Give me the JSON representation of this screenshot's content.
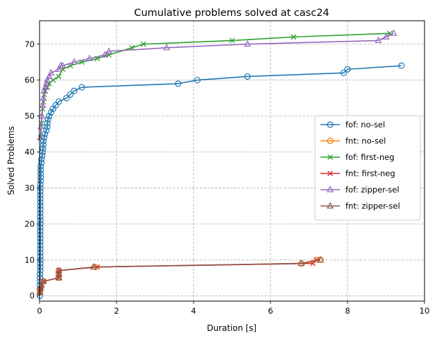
{
  "chart_data": {
    "type": "line",
    "title": "Cumulative problems solved at casc24",
    "xlabel": "Duration [s]",
    "ylabel": "Solved Problems",
    "xlim": [
      0,
      10
    ],
    "ylim": [
      -1.5,
      76.5
    ],
    "xticks": [
      0,
      2,
      4,
      6,
      8,
      10
    ],
    "yticks": [
      0,
      10,
      20,
      30,
      40,
      50,
      60,
      70
    ],
    "grid": true,
    "legend_position": "center-right",
    "series": [
      {
        "name": "fof: no-sel",
        "color": "#1f77b4",
        "marker": "circle",
        "x": [
          0.01,
          0.01,
          0.01,
          0.01,
          0.01,
          0.01,
          0.01,
          0.02,
          0.02,
          0.02,
          0.02,
          0.02,
          0.02,
          0.02,
          0.02,
          0.02,
          0.02,
          0.02,
          0.02,
          0.02,
          0.02,
          0.02,
          0.02,
          0.02,
          0.02,
          0.02,
          0.02,
          0.02,
          0.02,
          0.02,
          0.02,
          0.02,
          0.03,
          0.03,
          0.03,
          0.03,
          0.03,
          0.05,
          0.05,
          0.07,
          0.08,
          0.09,
          0.1,
          0.1,
          0.12,
          0.14,
          0.18,
          0.2,
          0.2,
          0.22,
          0.25,
          0.3,
          0.35,
          0.42,
          0.5,
          0.7,
          0.8,
          0.9,
          1.1,
          3.6,
          4.1,
          5.4,
          7.9,
          8.0,
          9.4
        ],
        "y": [
          0,
          1,
          2,
          3,
          4,
          5,
          6,
          7,
          8,
          9,
          10,
          11,
          12,
          13,
          14,
          15,
          16,
          17,
          18,
          19,
          20,
          21,
          22,
          23,
          24,
          25,
          26,
          27,
          28,
          29,
          30,
          31,
          32,
          33,
          34,
          35,
          36,
          37,
          38,
          39,
          40,
          41,
          42,
          43,
          44,
          45,
          46,
          47,
          48,
          49,
          50,
          51,
          52,
          53,
          54,
          55,
          56,
          57,
          58,
          59,
          60,
          61,
          62,
          63,
          64
        ]
      },
      {
        "name": "fnt: no-sel",
        "color": "#ff7f0e",
        "marker": "circle",
        "x": [
          0.01,
          0.03,
          0.1,
          0.5,
          0.5,
          0.5,
          1.45,
          6.8,
          7.2,
          7.3
        ],
        "y": [
          1,
          2,
          4,
          5,
          6,
          7,
          8,
          9,
          10,
          10
        ]
      },
      {
        "name": "fof: first-neg",
        "color": "#2ca02c",
        "marker": "x",
        "x": [
          0.03,
          0.05,
          0.08,
          0.1,
          0.12,
          0.15,
          0.2,
          0.25,
          0.35,
          0.5,
          0.6,
          0.8,
          1.1,
          1.5,
          1.8,
          2.4,
          2.7,
          5.0,
          6.6,
          9.1
        ],
        "y": [
          44,
          48,
          52,
          54,
          56,
          57,
          58,
          59,
          60,
          61,
          63,
          64,
          65,
          66,
          67,
          69,
          70,
          71,
          72,
          73
        ]
      },
      {
        "name": "fnt: first-neg",
        "color": "#d62728",
        "marker": "x",
        "x": [
          0.01,
          0.03,
          0.1,
          0.5,
          0.5,
          0.5,
          1.5,
          7.1,
          7.2
        ],
        "y": [
          1,
          2,
          4,
          5,
          6,
          7,
          8,
          9,
          10
        ]
      },
      {
        "name": "fof: zipper-sel",
        "color": "#9467bd",
        "marker": "triangle",
        "x": [
          0.02,
          0.04,
          0.06,
          0.08,
          0.1,
          0.12,
          0.15,
          0.18,
          0.2,
          0.25,
          0.3,
          0.5,
          0.55,
          0.6,
          0.9,
          1.3,
          1.7,
          1.8,
          3.3,
          5.4,
          8.8,
          9.0,
          9.2
        ],
        "y": [
          44,
          47,
          50,
          53,
          55,
          57,
          58,
          59,
          60,
          61,
          62,
          63,
          64,
          64,
          65,
          66,
          67,
          68,
          69,
          70,
          71,
          72,
          73
        ]
      },
      {
        "name": "fnt: zipper-sel",
        "color": "#8c564b",
        "marker": "triangle",
        "x": [
          0.01,
          0.02,
          0.05,
          0.1,
          0.5,
          0.5,
          0.5,
          1.4,
          6.8,
          7.3
        ],
        "y": [
          1,
          2,
          3,
          4,
          5,
          6,
          7,
          8,
          9,
          10
        ]
      }
    ]
  }
}
